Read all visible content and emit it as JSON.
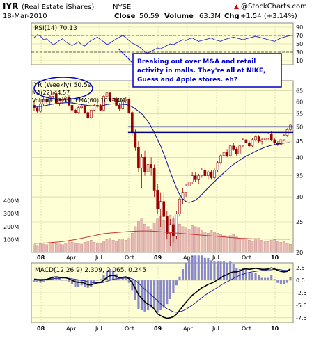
{
  "header": {
    "symbol": "IYR",
    "name": "(Real Estate iShares)",
    "exchange": "NYSE",
    "date": "18-Mar-2010",
    "close_label": "Close",
    "close_value": "50.59",
    "volume_label": "Volume",
    "volume_value": "63.3M",
    "change_label": "Chg",
    "change_value": "+1.54 (+3.14%)",
    "source": "@StockCharts.com",
    "source_arrow": "▲"
  },
  "colors": {
    "panel_bg": "#ffffd6",
    "grid": "#c9c9a0",
    "rsi_line": "#3333cc",
    "price": "#990000",
    "ma_line": "#1a1a99",
    "volume_bar": "#e8b8b8",
    "ema_line": "#cc3333",
    "resistance": "#000080",
    "macd_line": "#000000",
    "signal_line": "#2222aa",
    "histogram": "#8888cc",
    "annotation_border": "#0000cc"
  },
  "annotation": {
    "line1": "Breaking out over M&A and retail",
    "line2": "activity in malls.  They're all at NIKE,",
    "line3": "Guess and Apple stores. eh?"
  },
  "chart_data": [
    {
      "panel": "rsi",
      "type": "line",
      "legend": "RSI(14) 70.13",
      "ylim": [
        0,
        100
      ],
      "ticks": [
        "90",
        "70",
        "50",
        "30",
        "10"
      ],
      "reference_levels": [
        70,
        30
      ],
      "series": [
        {
          "name": "RSI(14)",
          "values": [
            65,
            72,
            68,
            60,
            62,
            55,
            48,
            52,
            58,
            62,
            55,
            50,
            46,
            50,
            55,
            48,
            45,
            52,
            58,
            62,
            66,
            60,
            55,
            48,
            52,
            57,
            62,
            66,
            70,
            65,
            58,
            52,
            48,
            44,
            38,
            30,
            28,
            32,
            36,
            40,
            38,
            42,
            46,
            50,
            48,
            52,
            56,
            60,
            58,
            62,
            64,
            60,
            56,
            58,
            60,
            62,
            64,
            60,
            58,
            56,
            60,
            62,
            64,
            66,
            64,
            62,
            60,
            62,
            64,
            66,
            68,
            66,
            64,
            62,
            60,
            58,
            56,
            60,
            64,
            66,
            68,
            70
          ]
        }
      ]
    },
    {
      "panel": "price",
      "type": "candlestick",
      "title": "IYR (Weekly) 50.59",
      "legend": [
        "MA(22) 44.57",
        "Volume 63.3M, EMA(60) 103.14M"
      ],
      "ylim": [
        20,
        70
      ],
      "log_scale": true,
      "ticks": [
        "65",
        "60",
        "55",
        "50",
        "45",
        "40",
        "35",
        "30",
        "25",
        "20"
      ],
      "x_labels": [
        "08",
        "Apr",
        "Jul",
        "Oct",
        "09",
        "Apr",
        "Jul",
        "Oct",
        "10"
      ],
      "resistance_levels": [
        50,
        48
      ],
      "ohlc": [
        [
          58.5,
          60.5,
          56,
          57.5
        ],
        [
          57.5,
          58,
          55.5,
          56
        ],
        [
          56,
          60,
          55.5,
          59
        ],
        [
          59,
          62,
          58,
          61
        ],
        [
          61,
          62.5,
          59,
          60
        ],
        [
          60,
          63,
          58.5,
          62.5
        ],
        [
          62.5,
          64.5,
          61,
          63.5
        ],
        [
          63.5,
          64,
          59,
          59.5
        ],
        [
          59.5,
          61,
          58,
          60.5
        ],
        [
          60.5,
          62,
          59,
          61
        ],
        [
          61,
          62.5,
          60,
          62
        ],
        [
          62,
          63,
          58,
          58.5
        ],
        [
          58.5,
          59,
          56,
          56.5
        ],
        [
          56.5,
          57,
          55,
          55.5
        ],
        [
          55.5,
          58,
          55,
          57.5
        ],
        [
          57.5,
          59,
          57,
          58
        ],
        [
          58,
          58.5,
          55,
          55.5
        ],
        [
          55.5,
          56,
          53,
          53.5
        ],
        [
          53.5,
          57,
          53,
          56.5
        ],
        [
          56.5,
          59,
          56,
          58.5
        ],
        [
          58.5,
          60,
          57,
          58
        ],
        [
          58,
          59,
          56,
          56.5
        ],
        [
          56.5,
          63,
          56,
          62.5
        ],
        [
          62.5,
          66,
          61,
          64
        ],
        [
          64,
          64.5,
          60,
          60.5
        ],
        [
          60.5,
          62,
          59,
          61.5
        ],
        [
          61.5,
          62,
          58,
          58.5
        ],
        [
          58.5,
          59.5,
          56,
          57
        ],
        [
          57,
          61,
          56.5,
          60.5
        ],
        [
          60.5,
          62,
          59.5,
          61
        ],
        [
          61,
          61.5,
          55,
          55.5
        ],
        [
          55.5,
          56,
          47,
          48
        ],
        [
          48,
          49,
          42,
          43
        ],
        [
          43,
          45,
          36,
          37
        ],
        [
          37,
          41,
          32,
          40
        ],
        [
          40,
          42,
          35,
          36
        ],
        [
          36,
          39,
          33.5,
          38
        ],
        [
          38,
          40,
          35,
          37
        ],
        [
          37,
          38,
          30,
          31.5
        ],
        [
          31.5,
          33,
          26.5,
          27.5
        ],
        [
          27.5,
          31,
          24,
          29
        ],
        [
          29,
          31,
          25,
          26
        ],
        [
          26,
          27,
          22,
          23
        ],
        [
          23,
          25.5,
          21,
          24.5
        ],
        [
          24.5,
          26,
          21.5,
          22.5
        ],
        [
          22.5,
          27,
          22,
          26.5
        ],
        [
          26.5,
          30,
          26,
          29.5
        ],
        [
          29.5,
          32,
          28.5,
          31
        ],
        [
          31,
          33,
          30,
          32.5
        ],
        [
          32.5,
          34,
          31.5,
          33.5
        ],
        [
          33.5,
          36,
          33,
          35
        ],
        [
          35,
          36,
          33.5,
          34
        ],
        [
          34,
          35.5,
          33,
          35
        ],
        [
          35,
          37,
          34.5,
          36.5
        ],
        [
          36.5,
          37,
          34.5,
          35
        ],
        [
          35,
          36.5,
          34,
          36
        ],
        [
          36,
          36.5,
          34,
          34.5
        ],
        [
          34.5,
          37,
          34,
          36.5
        ],
        [
          36.5,
          39,
          36,
          38.5
        ],
        [
          38.5,
          41,
          38,
          40.5
        ],
        [
          40.5,
          42,
          39.5,
          41.5
        ],
        [
          41.5,
          42.5,
          40,
          40.5
        ],
        [
          40.5,
          44,
          40,
          43.5
        ],
        [
          43.5,
          44.5,
          42,
          42.5
        ],
        [
          42.5,
          43,
          40.5,
          41
        ],
        [
          41,
          44,
          40.5,
          43.5
        ],
        [
          43.5,
          46,
          43,
          45.5
        ],
        [
          45.5,
          46.5,
          44,
          44.5
        ],
        [
          44.5,
          45,
          43,
          43.5
        ],
        [
          43.5,
          46,
          43,
          45.5
        ],
        [
          45.5,
          47,
          45,
          46.5
        ],
        [
          46.5,
          47,
          44.5,
          45
        ],
        [
          45,
          46,
          44,
          45.5
        ],
        [
          45.5,
          46.5,
          45,
          46
        ],
        [
          46,
          48,
          45.5,
          47.5
        ],
        [
          47.5,
          48.5,
          45,
          45.5
        ],
        [
          45.5,
          46,
          44,
          44.5
        ],
        [
          44.5,
          45,
          43.5,
          44
        ],
        [
          44,
          46,
          43.5,
          45.5
        ],
        [
          45.5,
          47.5,
          45,
          47
        ],
        [
          47,
          49.5,
          46.5,
          49
        ],
        [
          49,
          51,
          48.5,
          50.59
        ]
      ],
      "ma22": [
        58,
        58,
        58,
        58.2,
        58.5,
        58.8,
        59,
        59.2,
        59.4,
        59.5,
        59.6,
        59.6,
        59.5,
        59.3,
        59,
        58.8,
        58.6,
        58.4,
        58.3,
        58.2,
        58.2,
        58.3,
        58.5,
        58.8,
        59,
        59.1,
        59.1,
        59,
        58.9,
        58.8,
        58.5,
        57.8,
        57,
        56,
        55,
        53.5,
        52,
        50,
        48,
        45.5,
        43.5,
        41,
        38.5,
        36,
        34,
        32,
        30.5,
        29.5,
        29,
        28.8,
        29,
        29.3,
        29.8,
        30.5,
        31.3,
        32,
        32.8,
        33.5,
        34.3,
        35,
        35.8,
        36.5,
        37.3,
        38,
        38.6,
        39.2,
        39.8,
        40.3,
        40.8,
        41.3,
        41.8,
        42.3,
        42.7,
        43.1,
        43.4,
        43.7,
        43.9,
        44.1,
        44.3,
        44.4,
        44.5,
        44.57
      ]
    },
    {
      "panel": "volume",
      "type": "bar",
      "ylim": [
        0,
        500
      ],
      "ticks": [
        "400M",
        "300M",
        "200M",
        "100M"
      ],
      "values": [
        60,
        55,
        70,
        65,
        60,
        75,
        80,
        70,
        65,
        60,
        70,
        85,
        80,
        75,
        70,
        65,
        80,
        90,
        95,
        80,
        75,
        70,
        90,
        100,
        110,
        95,
        90,
        100,
        105,
        95,
        110,
        150,
        200,
        240,
        260,
        220,
        200,
        180,
        230,
        260,
        280,
        250,
        270,
        290,
        260,
        240,
        220,
        200,
        190,
        180,
        210,
        200,
        190,
        170,
        160,
        150,
        170,
        160,
        150,
        140,
        130,
        120,
        130,
        140,
        120,
        110,
        100,
        105,
        95,
        90,
        100,
        110,
        95,
        90,
        85,
        95,
        100,
        90,
        80,
        85,
        70,
        63
      ],
      "ema60": [
        70,
        71,
        72,
        73,
        74,
        76,
        78,
        80,
        82,
        85,
        88,
        92,
        96,
        100,
        105,
        110,
        115,
        120,
        125,
        130,
        135,
        140,
        145,
        148,
        150,
        152,
        154,
        156,
        158,
        160,
        162,
        163,
        164,
        165,
        166,
        166,
        166,
        165,
        164,
        162,
        160,
        158,
        156,
        154,
        152,
        150,
        148,
        146,
        144,
        142,
        140,
        138,
        136,
        134,
        132,
        130,
        128,
        126,
        124,
        122,
        120,
        118,
        116,
        114,
        112,
        110,
        109,
        108,
        107,
        106,
        106,
        105,
        105,
        104,
        104,
        104,
        103.5,
        103.5,
        103.3,
        103.2,
        103.2,
        103.14
      ]
    },
    {
      "panel": "macd",
      "type": "line",
      "legend": "MACD(12,26,9) 2.309, 2.065, 0.245",
      "ylim": [
        -8.5,
        3.5
      ],
      "ticks": [
        "2.5",
        "0.0",
        "-2.5",
        "-5.0",
        "-7.5"
      ],
      "x_labels": [
        "08",
        "Apr",
        "Jul",
        "Oct",
        "09",
        "Apr",
        "Jul",
        "Oct",
        "10"
      ],
      "series": [
        {
          "name": "MACD",
          "values": [
            0.2,
            0.1,
            0.0,
            0.1,
            0.2,
            0.4,
            0.6,
            0.7,
            0.6,
            0.5,
            0.5,
            0.3,
            0.0,
            -0.3,
            -0.4,
            -0.4,
            -0.6,
            -0.9,
            -0.9,
            -0.7,
            -0.5,
            -0.4,
            0.0,
            0.6,
            0.9,
            1.0,
            0.8,
            0.5,
            0.6,
            0.7,
            0.3,
            -0.5,
            -1.6,
            -2.9,
            -3.6,
            -4.3,
            -4.8,
            -5.1,
            -5.8,
            -6.7,
            -7.1,
            -7.4,
            -7.6,
            -7.5,
            -7.3,
            -6.8,
            -6.0,
            -5.2,
            -4.4,
            -3.7,
            -3.0,
            -2.5,
            -2.0,
            -1.5,
            -1.2,
            -0.8,
            -0.6,
            -0.3,
            0.1,
            0.5,
            0.9,
            1.1,
            1.5,
            1.7,
            1.7,
            1.9,
            2.2,
            2.3,
            2.2,
            2.3,
            2.4,
            2.3,
            2.2,
            2.2,
            2.3,
            2.5,
            2.3,
            2.0,
            1.8,
            1.7,
            1.8,
            2.309
          ]
        },
        {
          "name": "Signal",
          "values": [
            0.3,
            0.2,
            0.2,
            0.2,
            0.2,
            0.2,
            0.3,
            0.4,
            0.4,
            0.5,
            0.5,
            0.4,
            0.3,
            0.2,
            0.1,
            0.0,
            -0.1,
            -0.3,
            -0.4,
            -0.5,
            -0.5,
            -0.5,
            -0.4,
            -0.2,
            0.0,
            0.2,
            0.3,
            0.4,
            0.4,
            0.5,
            0.5,
            0.3,
            0.0,
            -0.6,
            -1.2,
            -1.8,
            -2.4,
            -2.9,
            -3.5,
            -4.1,
            -4.7,
            -5.2,
            -5.7,
            -6.0,
            -6.3,
            -6.4,
            -6.3,
            -6.1,
            -5.8,
            -5.4,
            -5.0,
            -4.5,
            -4.0,
            -3.5,
            -3.0,
            -2.6,
            -2.2,
            -1.8,
            -1.4,
            -1.0,
            -0.6,
            -0.3,
            0.0,
            0.4,
            0.7,
            1.0,
            1.2,
            1.4,
            1.6,
            1.7,
            1.8,
            1.9,
            2.0,
            2.0,
            2.1,
            2.1,
            2.2,
            2.2,
            2.1,
            2.0,
            2.0,
            2.065
          ]
        }
      ]
    }
  ]
}
